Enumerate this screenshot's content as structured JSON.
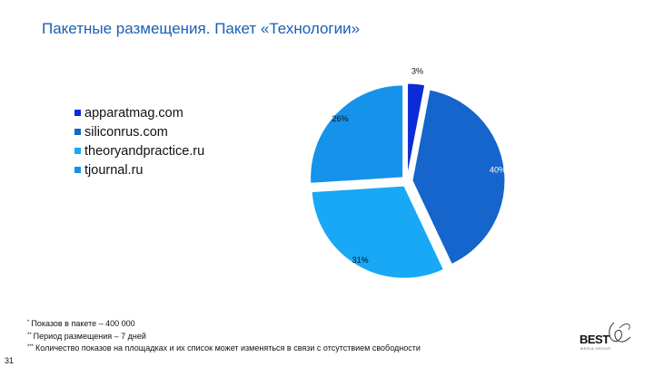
{
  "slide": {
    "title": "Пакетные размещения. Пакет «Технологии»",
    "page_number": "31",
    "notes": [
      {
        "mark": "*",
        "text": "Показов в пакете – 400 000"
      },
      {
        "mark": "**",
        "text": "Период размещения – 7 дней"
      },
      {
        "mark": "***",
        "text": "Количество показов на площадках и их список может изменяться в связи с отсутствием свободности"
      }
    ],
    "logo": {
      "text": "BEST",
      "script": "choice",
      "sub": "MEDIA GROUP"
    }
  },
  "chart_data": {
    "type": "pie",
    "title": "",
    "legend_position": "left",
    "slices": [
      {
        "label": "apparatmag.com",
        "value": 3,
        "display": "3%",
        "color": "#0a2bd6",
        "label_color": "#111111"
      },
      {
        "label": "siliconrus.com",
        "value": 40,
        "display": "40%",
        "color": "#1565cc",
        "label_color": "#ffffff"
      },
      {
        "label": "theoryandpractice.ru",
        "value": 31,
        "display": "31%",
        "color": "#18a8f5",
        "label_color": "#111111"
      },
      {
        "label": "tjournal.ru",
        "value": 26,
        "display": "26%",
        "color": "#1592ea",
        "label_color": "#111111"
      }
    ]
  }
}
